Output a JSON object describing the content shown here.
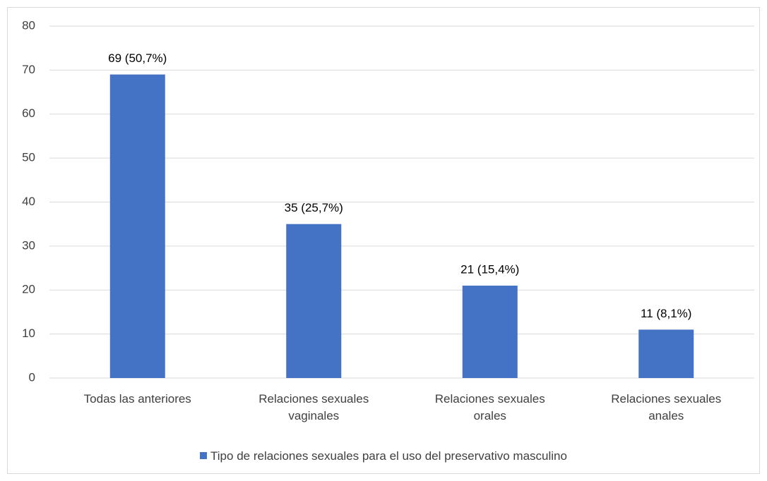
{
  "chart_data": {
    "type": "bar",
    "categories": [
      "Todas las anteriores",
      "Relaciones sexuales vaginales",
      "Relaciones sexuales orales",
      "Relaciones sexuales anales"
    ],
    "series": [
      {
        "name": "Tipo de relaciones sexuales para el uso del preservativo masculino",
        "color": "#4472c4",
        "values": [
          69,
          35,
          21,
          11
        ],
        "value_labels": [
          "69 (50,7%)",
          "35 (25,7%)",
          "21 (15,4%)",
          "11 (8,1%)"
        ]
      }
    ],
    "ylim": [
      0,
      80
    ],
    "yticks": [
      0,
      10,
      20,
      30,
      40,
      50,
      60,
      70,
      80
    ],
    "grid": true,
    "legend": "bottom"
  }
}
